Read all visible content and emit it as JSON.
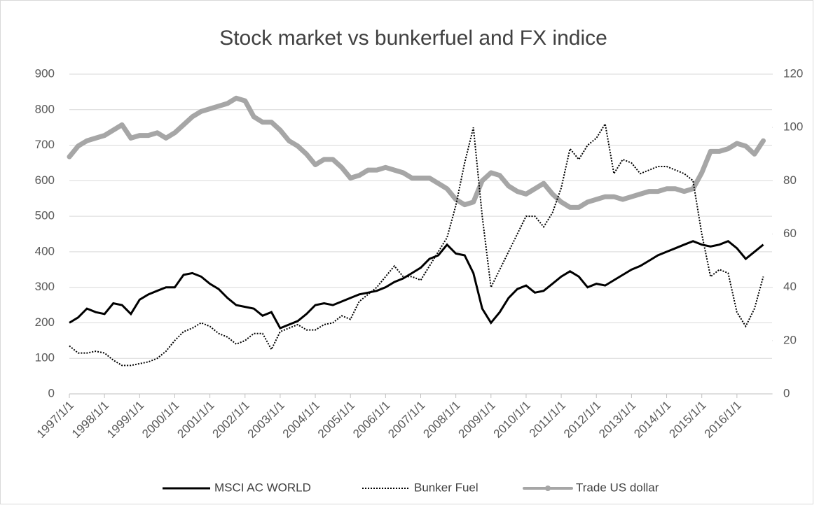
{
  "chart_data": {
    "type": "line",
    "title": "Stock market vs bunkerfuel and FX indice",
    "categories": [
      "1997/1/1",
      null,
      null,
      null,
      "1998/1/1",
      null,
      null,
      null,
      "1999/1/1",
      null,
      null,
      null,
      "2000/1/1",
      null,
      null,
      null,
      "2001/1/1",
      null,
      null,
      null,
      "2002/1/1",
      null,
      null,
      null,
      "2003/1/1",
      null,
      null,
      null,
      "2004/1/1",
      null,
      null,
      null,
      "2005/1/1",
      null,
      null,
      null,
      "2006/1/1",
      null,
      null,
      null,
      "2007/1/1",
      null,
      null,
      null,
      "2008/1/1",
      null,
      null,
      null,
      "2009/1/1",
      null,
      null,
      null,
      "2010/1/1",
      null,
      null,
      null,
      "2011/1/1",
      null,
      null,
      null,
      "2012/1/1",
      null,
      null,
      null,
      "2013/1/1",
      null,
      null,
      null,
      "2014/1/1",
      null,
      null,
      null,
      "2015/1/1",
      null,
      null,
      null,
      "2016/1/1",
      null,
      null,
      null
    ],
    "series": [
      {
        "name": "MSCI AC WORLD",
        "color": "#000000",
        "style": "solid",
        "axis": "y",
        "values": [
          200,
          215,
          240,
          230,
          225,
          255,
          250,
          225,
          265,
          280,
          290,
          300,
          300,
          335,
          340,
          330,
          310,
          295,
          270,
          250,
          245,
          240,
          220,
          230,
          185,
          195,
          205,
          225,
          250,
          255,
          250,
          260,
          270,
          280,
          285,
          290,
          300,
          315,
          325,
          340,
          355,
          380,
          390,
          420,
          395,
          390,
          340,
          240,
          200,
          230,
          270,
          295,
          305,
          285,
          290,
          310,
          330,
          345,
          330,
          300,
          310,
          305,
          320,
          335,
          350,
          360,
          375,
          390,
          400,
          410,
          420,
          430,
          420,
          415,
          420,
          430,
          410,
          380,
          400,
          420
        ]
      },
      {
        "name": "Bunker Fuel",
        "color": "#000000",
        "style": "dotted",
        "axis": "y",
        "values": [
          135,
          115,
          115,
          120,
          115,
          95,
          80,
          80,
          85,
          90,
          100,
          120,
          150,
          175,
          185,
          200,
          190,
          170,
          160,
          140,
          150,
          170,
          170,
          125,
          175,
          185,
          195,
          180,
          180,
          195,
          200,
          220,
          210,
          260,
          280,
          300,
          330,
          360,
          330,
          330,
          320,
          360,
          400,
          440,
          530,
          650,
          750,
          500,
          300,
          350,
          400,
          450,
          500,
          500,
          470,
          510,
          580,
          690,
          660,
          700,
          720,
          760,
          620,
          660,
          650,
          620,
          630,
          640,
          640,
          630,
          620,
          600,
          450,
          330,
          350,
          340,
          230,
          190,
          240,
          330
        ]
      },
      {
        "name": "Trade US dollar",
        "color": "#a6a6a6",
        "style": "thick",
        "axis": "y2",
        "values": [
          89,
          93,
          95,
          96,
          97,
          99,
          101,
          96,
          97,
          97,
          98,
          96,
          98,
          101,
          104,
          106,
          107,
          108,
          109,
          111,
          110,
          104,
          102,
          102,
          99,
          95,
          93,
          90,
          86,
          88,
          88,
          85,
          81,
          82,
          84,
          84,
          85,
          84,
          83,
          81,
          81,
          81,
          79,
          77,
          73,
          71,
          72,
          80,
          83,
          82,
          78,
          76,
          75,
          77,
          79,
          75,
          72,
          70,
          70,
          72,
          73,
          74,
          74,
          73,
          74,
          75,
          76,
          76,
          77,
          77,
          76,
          77,
          83,
          91,
          91,
          92,
          94,
          93,
          90,
          95
        ]
      }
    ],
    "ylim": [
      0,
      900
    ],
    "yticks": [
      0,
      100,
      200,
      300,
      400,
      500,
      600,
      700,
      800,
      900
    ],
    "y2lim": [
      0,
      120
    ],
    "y2ticks": [
      0,
      20,
      40,
      60,
      80,
      100,
      120
    ],
    "grid": true,
    "legend": "bottom"
  }
}
